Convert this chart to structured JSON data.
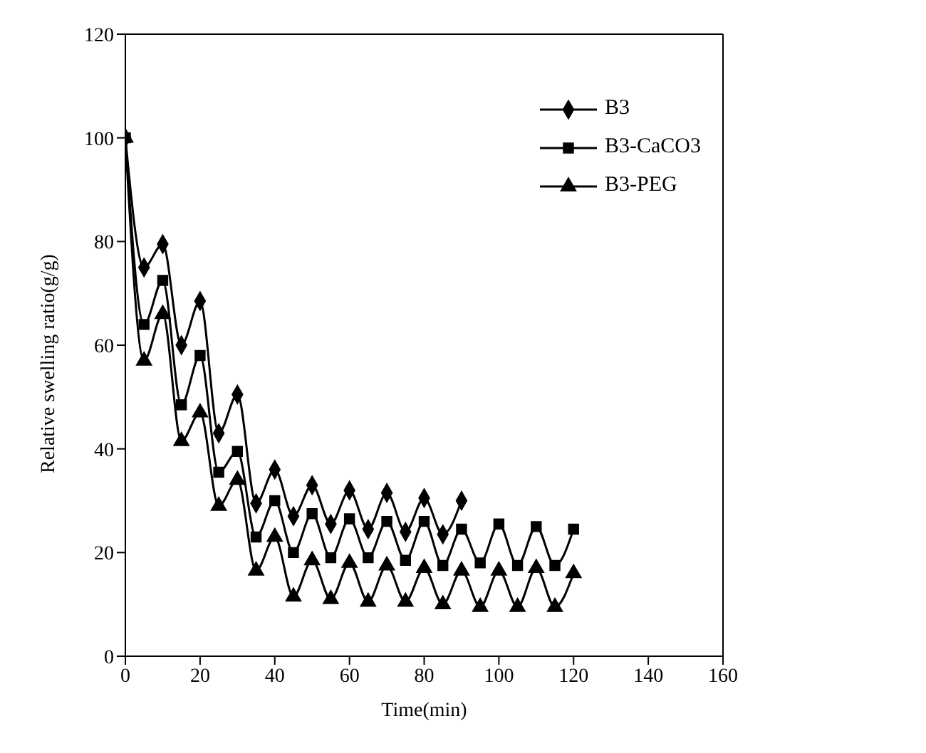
{
  "chart_data": {
    "type": "line",
    "xlabel": "Time(min)",
    "ylabel": "Relative swelling ratio(g/g)",
    "x": [
      0,
      5,
      10,
      15,
      20,
      25,
      30,
      35,
      40,
      45,
      50,
      55,
      60,
      65,
      70,
      75,
      80,
      85,
      90,
      95,
      100,
      105,
      110,
      115,
      120
    ],
    "series": [
      {
        "name": "B3",
        "color": "#000000",
        "marker": "diamond",
        "x": [
          0,
          5,
          10,
          15,
          20,
          25,
          30,
          35,
          40,
          45,
          50,
          55,
          60,
          65,
          70,
          75,
          80,
          85,
          90
        ],
        "values": [
          100,
          75,
          79.5,
          60,
          68.5,
          43,
          50.5,
          29.5,
          36,
          27,
          33,
          25.5,
          32,
          24.5,
          31.5,
          24,
          30.5,
          23.5,
          30
        ]
      },
      {
        "name": "B3-CaCO3",
        "color": "#000000",
        "marker": "square",
        "values": [
          100,
          64,
          72.5,
          48.5,
          58,
          35.5,
          39.5,
          23,
          30,
          20,
          27.5,
          19,
          26.5,
          19,
          26,
          18.5,
          26,
          17.5,
          24.5,
          18,
          25.5,
          17.5,
          25,
          17.5,
          24.5
        ]
      },
      {
        "name": "B3-PEG",
        "color": "#000000",
        "marker": "triangle",
        "values": [
          100,
          57,
          66,
          41.5,
          47,
          29,
          34,
          16.5,
          23,
          11.5,
          18.5,
          11,
          18,
          10.5,
          17.5,
          10.5,
          17,
          10,
          16.5,
          9.5,
          16.5,
          9.5,
          17,
          9.5,
          16
        ]
      }
    ],
    "xlim": [
      0,
      160
    ],
    "xticks": [
      0,
      20,
      40,
      60,
      80,
      100,
      120,
      140,
      160
    ],
    "ylim": [
      0,
      120
    ],
    "yticks": [
      0,
      20,
      40,
      60,
      80,
      100,
      120
    ],
    "grid": false,
    "legend": "top right",
    "line_style": "solid"
  }
}
